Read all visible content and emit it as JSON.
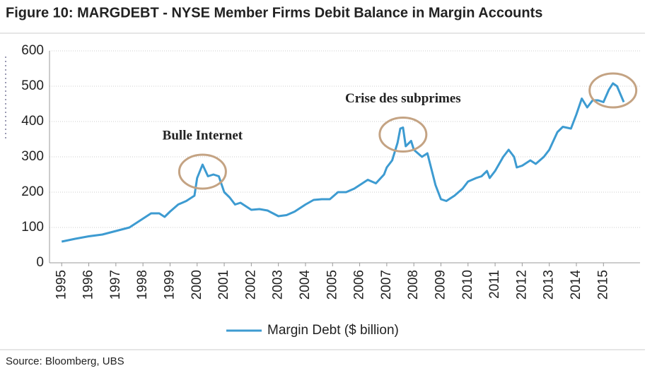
{
  "chart_data": {
    "type": "line",
    "title": "Figure 10: MARGDEBT - NYSE Member Firms Debit Balance in Margin Accounts",
    "source": "Source:  Bloomberg, UBS",
    "annotations": [
      {
        "text": "Bulle Internet",
        "x": 2000.2,
        "y": 278
      },
      {
        "text": "Crise des subprimes",
        "x": 2007.6,
        "y": 383
      },
      {
        "x": 2015.35,
        "y": 508
      }
    ],
    "x": [
      1995,
      1995.5,
      1996,
      1996.5,
      1997,
      1997.5,
      1998,
      1998.3,
      1998.6,
      1998.8,
      1999,
      1999.3,
      1999.6,
      1999.9,
      2000.0,
      2000.2,
      2000.4,
      2000.6,
      2000.8,
      2001,
      2001.2,
      2001.4,
      2001.6,
      2001.9,
      2002,
      2002.3,
      2002.6,
      2002.8,
      2003,
      2003.3,
      2003.6,
      2004,
      2004.3,
      2004.6,
      2004.9,
      2005.2,
      2005.5,
      2005.8,
      2006,
      2006.3,
      2006.6,
      2006.9,
      2007,
      2007.2,
      2007.4,
      2007.5,
      2007.6,
      2007.7,
      2007.9,
      2008,
      2008.3,
      2008.5,
      2008.6,
      2008.8,
      2009,
      2009.2,
      2009.5,
      2009.8,
      2010,
      2010.3,
      2010.5,
      2010.7,
      2010.8,
      2011,
      2011.3,
      2011.5,
      2011.7,
      2011.8,
      2012,
      2012.3,
      2012.5,
      2012.8,
      2013,
      2013.3,
      2013.5,
      2013.8,
      2014,
      2014.2,
      2014.4,
      2014.6,
      2014.8,
      2015,
      2015.2,
      2015.35,
      2015.5,
      2015.75
    ],
    "series": [
      {
        "name": "Margin Debt ($ billion)",
        "color": "#3d9bd1",
        "values": [
          60,
          68,
          75,
          80,
          90,
          100,
          125,
          140,
          140,
          130,
          145,
          165,
          175,
          190,
          240,
          278,
          245,
          250,
          245,
          200,
          185,
          165,
          170,
          155,
          150,
          152,
          148,
          140,
          132,
          135,
          145,
          165,
          178,
          180,
          180,
          200,
          200,
          210,
          220,
          235,
          225,
          250,
          270,
          290,
          340,
          380,
          383,
          330,
          345,
          320,
          300,
          310,
          280,
          220,
          180,
          175,
          190,
          210,
          230,
          240,
          245,
          260,
          240,
          260,
          300,
          320,
          300,
          270,
          275,
          290,
          280,
          300,
          320,
          370,
          385,
          380,
          420,
          465,
          440,
          460,
          460,
          455,
          490,
          508,
          500,
          455
        ]
      }
    ],
    "xlim": [
      1994.55,
      2016.35
    ],
    "xticks": [
      1995,
      1996,
      1997,
      1998,
      1999,
      2000,
      2001,
      2002,
      2003,
      2004,
      2005,
      2006,
      2007,
      2008,
      2009,
      2010,
      2011,
      2012,
      2013,
      2014,
      2015
    ],
    "ylim": [
      0,
      600
    ],
    "yticks": [
      0,
      100,
      200,
      300,
      400,
      500,
      600
    ],
    "grid": true,
    "legend": "bottom"
  }
}
